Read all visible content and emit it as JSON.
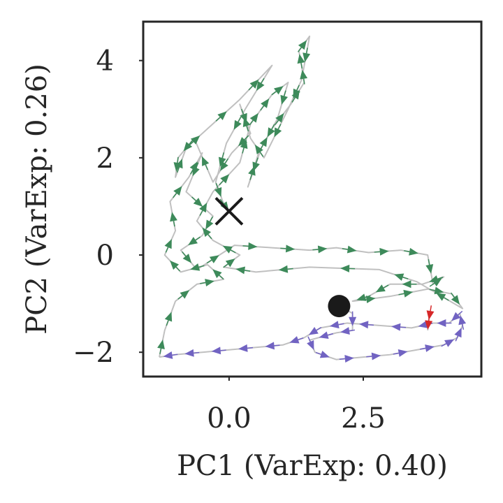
{
  "chart_data": {
    "type": "line",
    "title": "",
    "xlabel": "PC1 (VarExp: 0.40)",
    "ylabel": "PC2 (VarExp: 0.26)",
    "xlim": [
      -1.6,
      4.7
    ],
    "ylim": [
      -2.5,
      4.8
    ],
    "xticks": [
      {
        "value": 0.0,
        "label": "0.0"
      },
      {
        "value": 2.5,
        "label": "2.5"
      }
    ],
    "yticks": [
      {
        "value": -2,
        "label": "−2"
      },
      {
        "value": 0,
        "label": "0"
      },
      {
        "value": 2,
        "label": "2"
      },
      {
        "value": 4,
        "label": "4"
      }
    ],
    "grid": false,
    "trajectory_color": "#c0c0c0",
    "series": [
      {
        "color": "#7163c2",
        "points": [
          [
            2.05,
            -1.05
          ],
          [
            2.3,
            -1.2
          ],
          [
            2.3,
            -1.55
          ],
          [
            2.0,
            -1.6
          ],
          [
            1.5,
            -1.75
          ],
          [
            1.6,
            -2.0
          ],
          [
            2.0,
            -2.15
          ],
          [
            2.5,
            -2.1
          ],
          [
            3.0,
            -2.05
          ],
          [
            3.5,
            -1.95
          ],
          [
            4.0,
            -1.85
          ],
          [
            4.25,
            -1.7
          ],
          [
            4.35,
            -1.45
          ],
          [
            4.3,
            -1.2
          ],
          [
            4.1,
            -1.4
          ],
          [
            3.8,
            -1.4
          ],
          [
            3.4,
            -1.5
          ],
          [
            2.8,
            -1.45
          ],
          [
            2.2,
            -1.4
          ],
          [
            1.7,
            -1.5
          ],
          [
            1.4,
            -1.7
          ],
          [
            1.0,
            -1.85
          ],
          [
            0.5,
            -1.9
          ],
          [
            0.0,
            -1.95
          ],
          [
            -0.5,
            -2.0
          ],
          [
            -1.0,
            -2.05
          ],
          [
            -1.3,
            -2.1
          ]
        ]
      },
      {
        "color": "#d62728",
        "points": [
          [
            3.75,
            -1.15
          ],
          [
            3.72,
            -1.35
          ],
          [
            3.7,
            -1.55
          ]
        ]
      },
      {
        "color": "#3d8a5a",
        "points": [
          [
            -1.3,
            -2.1
          ],
          [
            -1.2,
            -1.55
          ],
          [
            -1.0,
            -0.95
          ],
          [
            -0.6,
            -0.6
          ],
          [
            -0.1,
            -0.5
          ],
          [
            -0.4,
            -0.2
          ],
          [
            -0.9,
            -0.35
          ],
          [
            -1.2,
            0.0
          ],
          [
            -1.0,
            0.5
          ],
          [
            -1.1,
            1.1
          ],
          [
            -0.75,
            1.6
          ],
          [
            -0.5,
            2.1
          ],
          [
            -0.8,
            1.3
          ],
          [
            -0.3,
            0.8
          ],
          [
            -0.5,
            0.4
          ],
          [
            -0.9,
            0.1
          ],
          [
            -0.6,
            -0.3
          ],
          [
            0.1,
            0.2
          ],
          [
            0.8,
            0.15
          ],
          [
            1.5,
            0.1
          ],
          [
            2.0,
            0.15
          ],
          [
            2.6,
            0.05
          ],
          [
            3.2,
            0.1
          ],
          [
            3.7,
            0.0
          ],
          [
            3.8,
            -0.6
          ],
          [
            4.0,
            -0.45
          ],
          [
            3.6,
            -0.6
          ],
          [
            3.0,
            -0.6
          ],
          [
            2.6,
            -0.85
          ],
          [
            2.3,
            -0.95
          ],
          [
            3.0,
            -0.85
          ],
          [
            3.7,
            -0.7
          ],
          [
            4.15,
            -0.8
          ],
          [
            4.35,
            -1.1
          ],
          [
            3.5,
            -0.55
          ],
          [
            2.8,
            -0.3
          ],
          [
            1.5,
            -0.25
          ],
          [
            0.5,
            -0.35
          ],
          [
            -0.1,
            -0.25
          ],
          [
            0.2,
            0.0
          ],
          [
            -0.3,
            0.3
          ],
          [
            -0.6,
            0.7
          ],
          [
            -0.3,
            1.3
          ],
          [
            0.2,
            1.9
          ],
          [
            0.4,
            2.7
          ],
          [
            0.6,
            3.0
          ],
          [
            0.8,
            3.3
          ],
          [
            1.1,
            3.55
          ],
          [
            0.9,
            2.8
          ],
          [
            0.6,
            2.2
          ],
          [
            0.35,
            1.4
          ],
          [
            0.55,
            2.1
          ],
          [
            0.8,
            2.6
          ],
          [
            1.15,
            3.1
          ],
          [
            1.4,
            3.55
          ],
          [
            1.35,
            3.9
          ],
          [
            1.3,
            4.2
          ],
          [
            1.5,
            4.5
          ],
          [
            1.35,
            3.6
          ],
          [
            1.1,
            3.0
          ],
          [
            0.65,
            2.0
          ],
          [
            0.4,
            2.4
          ],
          [
            0.2,
            3.1
          ],
          [
            0.4,
            2.5
          ],
          [
            0.05,
            2.1
          ],
          [
            -0.3,
            1.5
          ],
          [
            -0.65,
            2.4
          ],
          [
            -0.95,
            2.0
          ],
          [
            -1.0,
            1.6
          ],
          [
            -0.8,
            2.2
          ],
          [
            -0.4,
            2.6
          ],
          [
            0.2,
            3.2
          ],
          [
            0.8,
            3.9
          ],
          [
            0.3,
            3.0
          ],
          [
            -0.05,
            2.3
          ],
          [
            -0.25,
            1.5
          ],
          [
            -0.1,
            1.05
          ],
          [
            0.0,
            0.9
          ]
        ]
      }
    ],
    "markers": {
      "start": {
        "x": 2.05,
        "y": -1.05,
        "shape": "filled-circle",
        "color": "#1a1a1a"
      },
      "end": {
        "x": 0.0,
        "y": 0.9,
        "shape": "x",
        "color": "#1a1a1a"
      }
    }
  }
}
